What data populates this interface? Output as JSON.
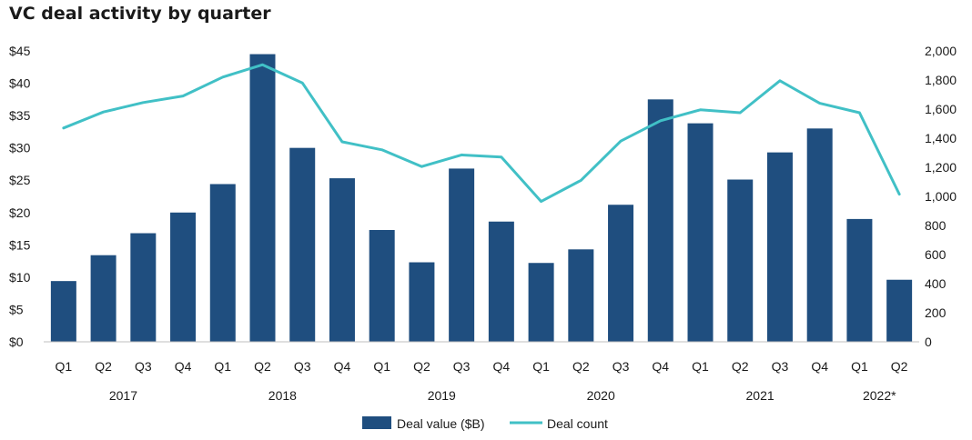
{
  "chart_data": {
    "type": "bar-line-combo",
    "title": "VC deal activity by quarter",
    "categories": [
      "Q1",
      "Q2",
      "Q3",
      "Q4",
      "Q1",
      "Q2",
      "Q3",
      "Q4",
      "Q1",
      "Q2",
      "Q3",
      "Q4",
      "Q1",
      "Q2",
      "Q3",
      "Q4",
      "Q1",
      "Q2",
      "Q3",
      "Q4",
      "Q1",
      "Q2"
    ],
    "year_groups": [
      {
        "label": "2017",
        "start": 0,
        "end": 3
      },
      {
        "label": "2018",
        "start": 4,
        "end": 7
      },
      {
        "label": "2019",
        "start": 8,
        "end": 11
      },
      {
        "label": "2020",
        "start": 12,
        "end": 15
      },
      {
        "label": "2021",
        "start": 16,
        "end": 19
      },
      {
        "label": "2022*",
        "start": 20,
        "end": 21
      }
    ],
    "series": [
      {
        "name": "Deal value ($B)",
        "type": "bar",
        "axis": "left",
        "color": "#1f4e7f",
        "values": [
          9.4,
          13.4,
          16.8,
          20.0,
          24.4,
          44.5,
          30.0,
          25.3,
          17.3,
          12.3,
          26.8,
          18.6,
          12.2,
          14.3,
          21.2,
          37.5,
          33.8,
          25.1,
          29.3,
          33.0,
          19.0,
          9.6
        ]
      },
      {
        "name": "Deal count",
        "type": "line",
        "axis": "right",
        "color": "#41c0c6",
        "values": [
          1470,
          1580,
          1645,
          1690,
          1820,
          1905,
          1780,
          1375,
          1320,
          1205,
          1285,
          1270,
          965,
          1110,
          1380,
          1520,
          1595,
          1575,
          1795,
          1640,
          1575,
          1015
        ]
      }
    ],
    "left_axis": {
      "ylim": [
        0,
        45
      ],
      "ticks": [
        0,
        5,
        10,
        15,
        20,
        25,
        30,
        35,
        40,
        45
      ],
      "tick_labels": [
        "$0",
        "$5",
        "$10",
        "$15",
        "$20",
        "$25",
        "$30",
        "$35",
        "$40",
        "$45"
      ]
    },
    "right_axis": {
      "ylim": [
        0,
        2000
      ],
      "ticks": [
        0,
        200,
        400,
        600,
        800,
        1000,
        1200,
        1400,
        1600,
        1800,
        2000
      ],
      "tick_labels": [
        "0",
        "200",
        "400",
        "600",
        "800",
        "1,000",
        "1,200",
        "1,400",
        "1,600",
        "1,800",
        "2,000"
      ]
    },
    "grid": false,
    "legend": "bottom-center"
  }
}
